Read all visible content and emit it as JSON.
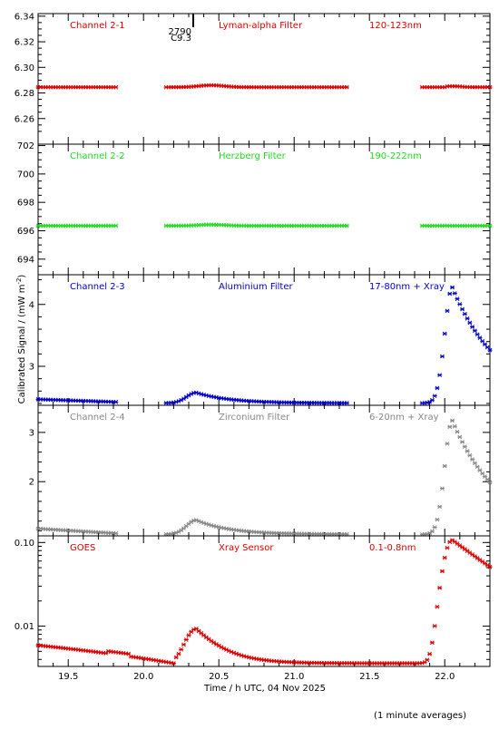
{
  "chart_data": {
    "type": "scatter",
    "marker": "asterisk",
    "axis_color": "#000000",
    "x_tick_labels": [
      "19.5",
      "20.0",
      "20.5",
      "21.0",
      "21.5",
      "22.0"
    ],
    "xlim": [
      19.3,
      22.3
    ],
    "xlabel": "Time / h UTC, 04 Nov 2025",
    "ylabel": "Calibrated Signal / (mW m",
    "ylabel_sup": "-2",
    "ylabel_close": ")",
    "footnote": "(1 minute averages)",
    "annotation": {
      "line1": "2790",
      "line2": "C9.3",
      "x": 20.33
    },
    "panels": [
      {
        "channel": "Channel 2-1",
        "filter": "Lyman-alpha Filter",
        "band": "120-123nm",
        "color": "#dd0000",
        "scale": "linear",
        "ylim": [
          6.24,
          6.342
        ],
        "ticks": [
          6.26,
          6.28,
          6.3,
          6.32,
          6.34
        ],
        "tick_labels": [
          "6.26",
          "6.28",
          "6.30",
          "6.32",
          "6.34"
        ],
        "minor_ticks": [
          6.25,
          6.255,
          6.265,
          6.27,
          6.275,
          6.285,
          6.29,
          6.295,
          6.305,
          6.31,
          6.315,
          6.325,
          6.33,
          6.335
        ],
        "key": "c1",
        "profile": "flat",
        "base": 6.2845,
        "bump": 0.0015,
        "flare": 0.0008,
        "tail": 0,
        "slope": 0
      },
      {
        "channel": "Channel 2-2",
        "filter": "Herzberg Filter",
        "band": "190-222nm",
        "color": "#22dd22",
        "scale": "linear",
        "ylim": [
          692.9,
          702.1
        ],
        "ticks": [
          694,
          696,
          698,
          700,
          702
        ],
        "tick_labels": [
          "694",
          "696",
          "698",
          "700",
          "702"
        ],
        "minor_ticks": [
          693.5,
          694.5,
          695,
          695.5,
          696.5,
          697,
          697.5,
          698.5,
          699,
          699.5,
          700.5,
          701,
          701.5
        ],
        "key": "c2",
        "profile": "flat",
        "base": 696.35,
        "bump": 0.08,
        "flare": 0,
        "tail": 0,
        "slope": 0
      },
      {
        "channel": "Channel 2-3",
        "filter": "Aluminium Filter",
        "band": "17-80nm + Xray",
        "color": "#0000cc",
        "scale": "linear",
        "ylim": [
          2.37,
          4.48
        ],
        "ticks": [
          3,
          4
        ],
        "tick_labels": [
          "3",
          "4"
        ],
        "minor_ticks": [
          2.4,
          2.6,
          2.8,
          3.2,
          3.4,
          3.6,
          3.8,
          4.2,
          4.4
        ],
        "key": "c3",
        "profile": "flare",
        "base": 2.405,
        "bump": 0.17,
        "flare": 1.87,
        "tail": 0.09,
        "slope": 0.11
      },
      {
        "channel": "Channel 2-4",
        "filter": "Zirconium Filter",
        "band": "6-20nm + Xray",
        "color": "#888888",
        "scale": "linear",
        "ylim": [
          0.9,
          3.55
        ],
        "ticks": [
          2,
          3
        ],
        "tick_labels": [
          "2",
          "3"
        ],
        "minor_ticks": [
          1.0,
          1.2,
          1.4,
          1.6,
          1.8,
          2.2,
          2.4,
          2.6,
          2.8,
          3.2,
          3.4
        ],
        "key": "c4",
        "profile": "flare",
        "base": 0.93,
        "bump": 0.29,
        "flare": 2.31,
        "tail": 0.1,
        "slope": 0.24
      },
      {
        "channel": "GOES",
        "filter": "Xray Sensor",
        "band": "0.1-0.8nm",
        "color": "#dd0000",
        "scale": "log",
        "ylim": [
          0.0033,
          0.12
        ],
        "ticks": [
          0.01,
          0.1
        ],
        "tick_labels": [
          "0.01",
          "0.10"
        ],
        "minor_ticks": [
          0.004,
          0.005,
          0.006,
          0.007,
          0.008,
          0.009,
          0.02,
          0.03,
          0.04,
          0.05,
          0.06,
          0.07,
          0.08,
          0.09
        ],
        "key": "goes",
        "profile": "goes",
        "base": 0.0036,
        "bump": 0.0057,
        "flare": 0.1035,
        "tail": 0.0016,
        "slope": 0.0023
      }
    ],
    "segments": [
      [
        19.3,
        19.82
      ],
      [
        20.15,
        21.35
      ],
      [
        21.85,
        22.3
      ]
    ],
    "goes_segment": [
      19.3,
      22.3
    ],
    "small_flare_peak": 20.35,
    "big_flare_peak": 22.05
  }
}
